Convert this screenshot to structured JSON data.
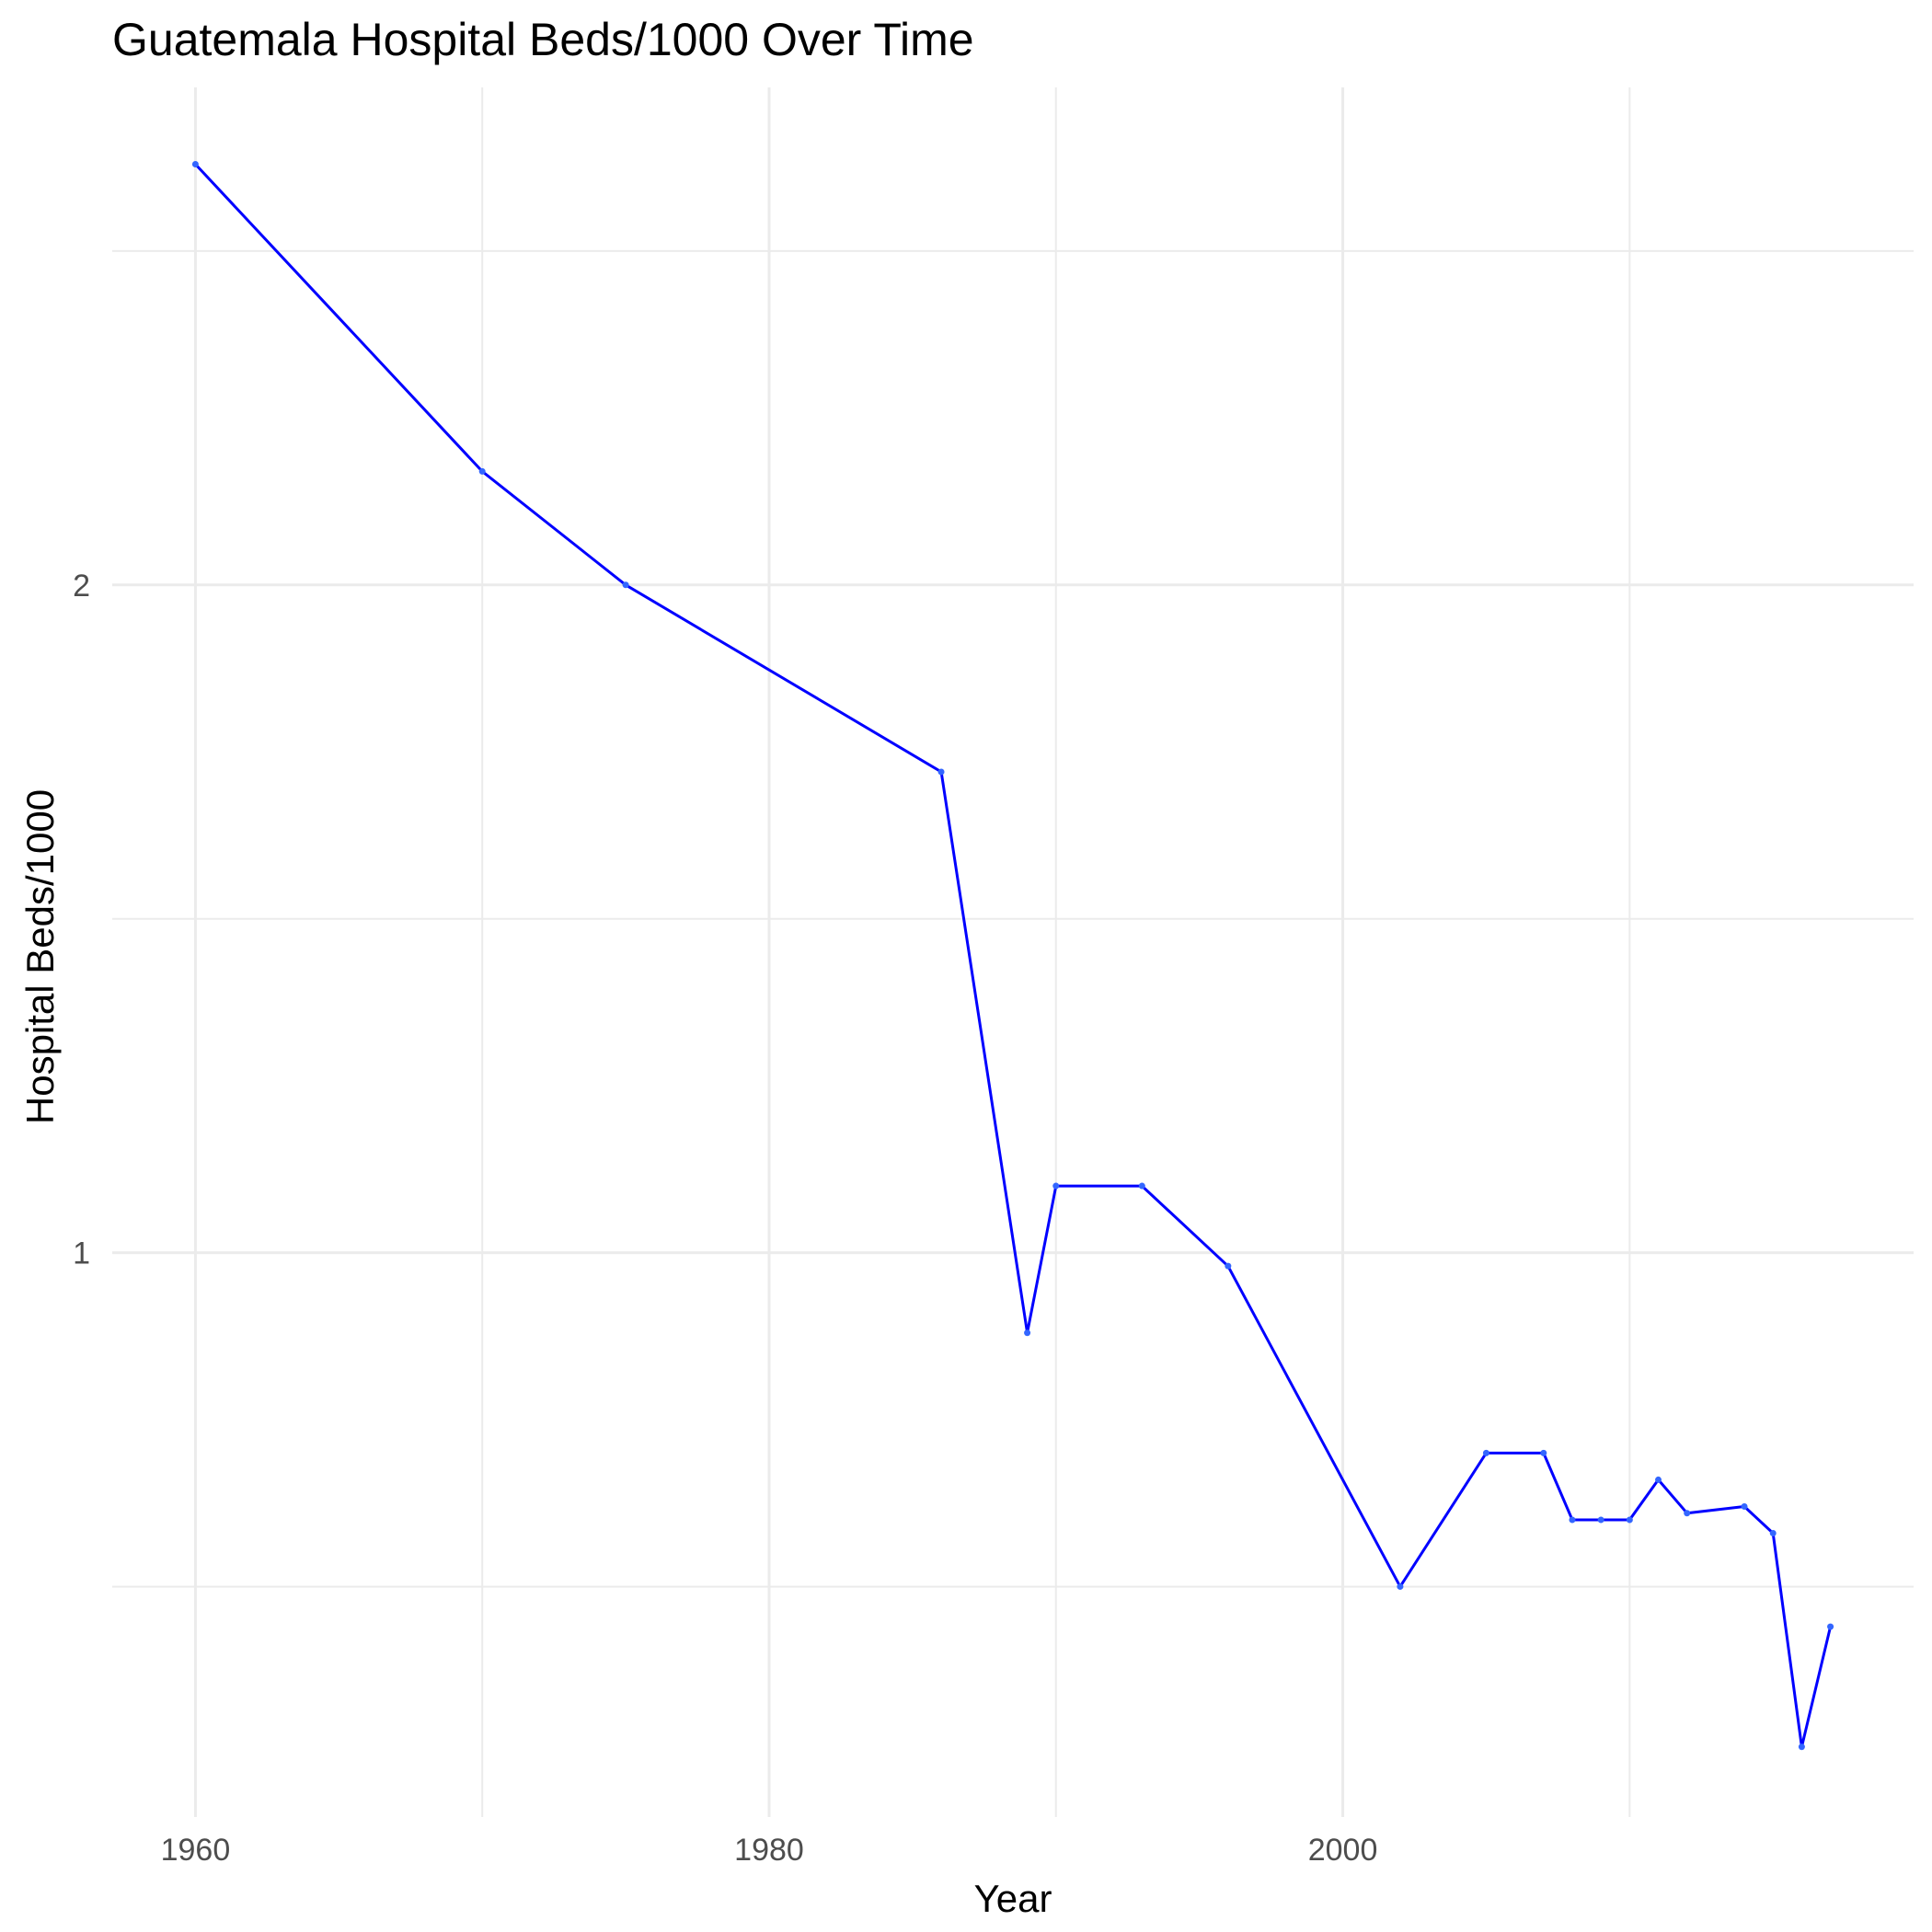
{
  "chart_data": {
    "type": "line",
    "title": "Guatemala Hospital Beds/1000 Over Time",
    "xlabel": "Year",
    "ylabel": "Hospital Beds/1000",
    "xlim": [
      1957.1,
      2019.9
    ],
    "ylim": [
      0.155,
      2.745
    ],
    "x_ticks": [
      1960,
      1980,
      2000
    ],
    "y_ticks": [
      1,
      2
    ],
    "grid": true,
    "line_color": "#0000ff",
    "point_color": "#3366ff",
    "series": [
      {
        "x": [
          1960,
          1970,
          1975,
          1986,
          1989,
          1990,
          1993,
          1996,
          2002,
          2005,
          2007,
          2008,
          2009,
          2010,
          2011,
          2012,
          2014,
          2015,
          2016,
          2017
        ],
        "y": [
          2.63,
          2.17,
          2.0,
          1.72,
          0.88,
          1.1,
          1.1,
          0.98,
          0.5,
          0.7,
          0.7,
          0.6,
          0.6,
          0.6,
          0.66,
          0.61,
          0.62,
          0.58,
          0.26,
          0.44
        ]
      }
    ]
  }
}
